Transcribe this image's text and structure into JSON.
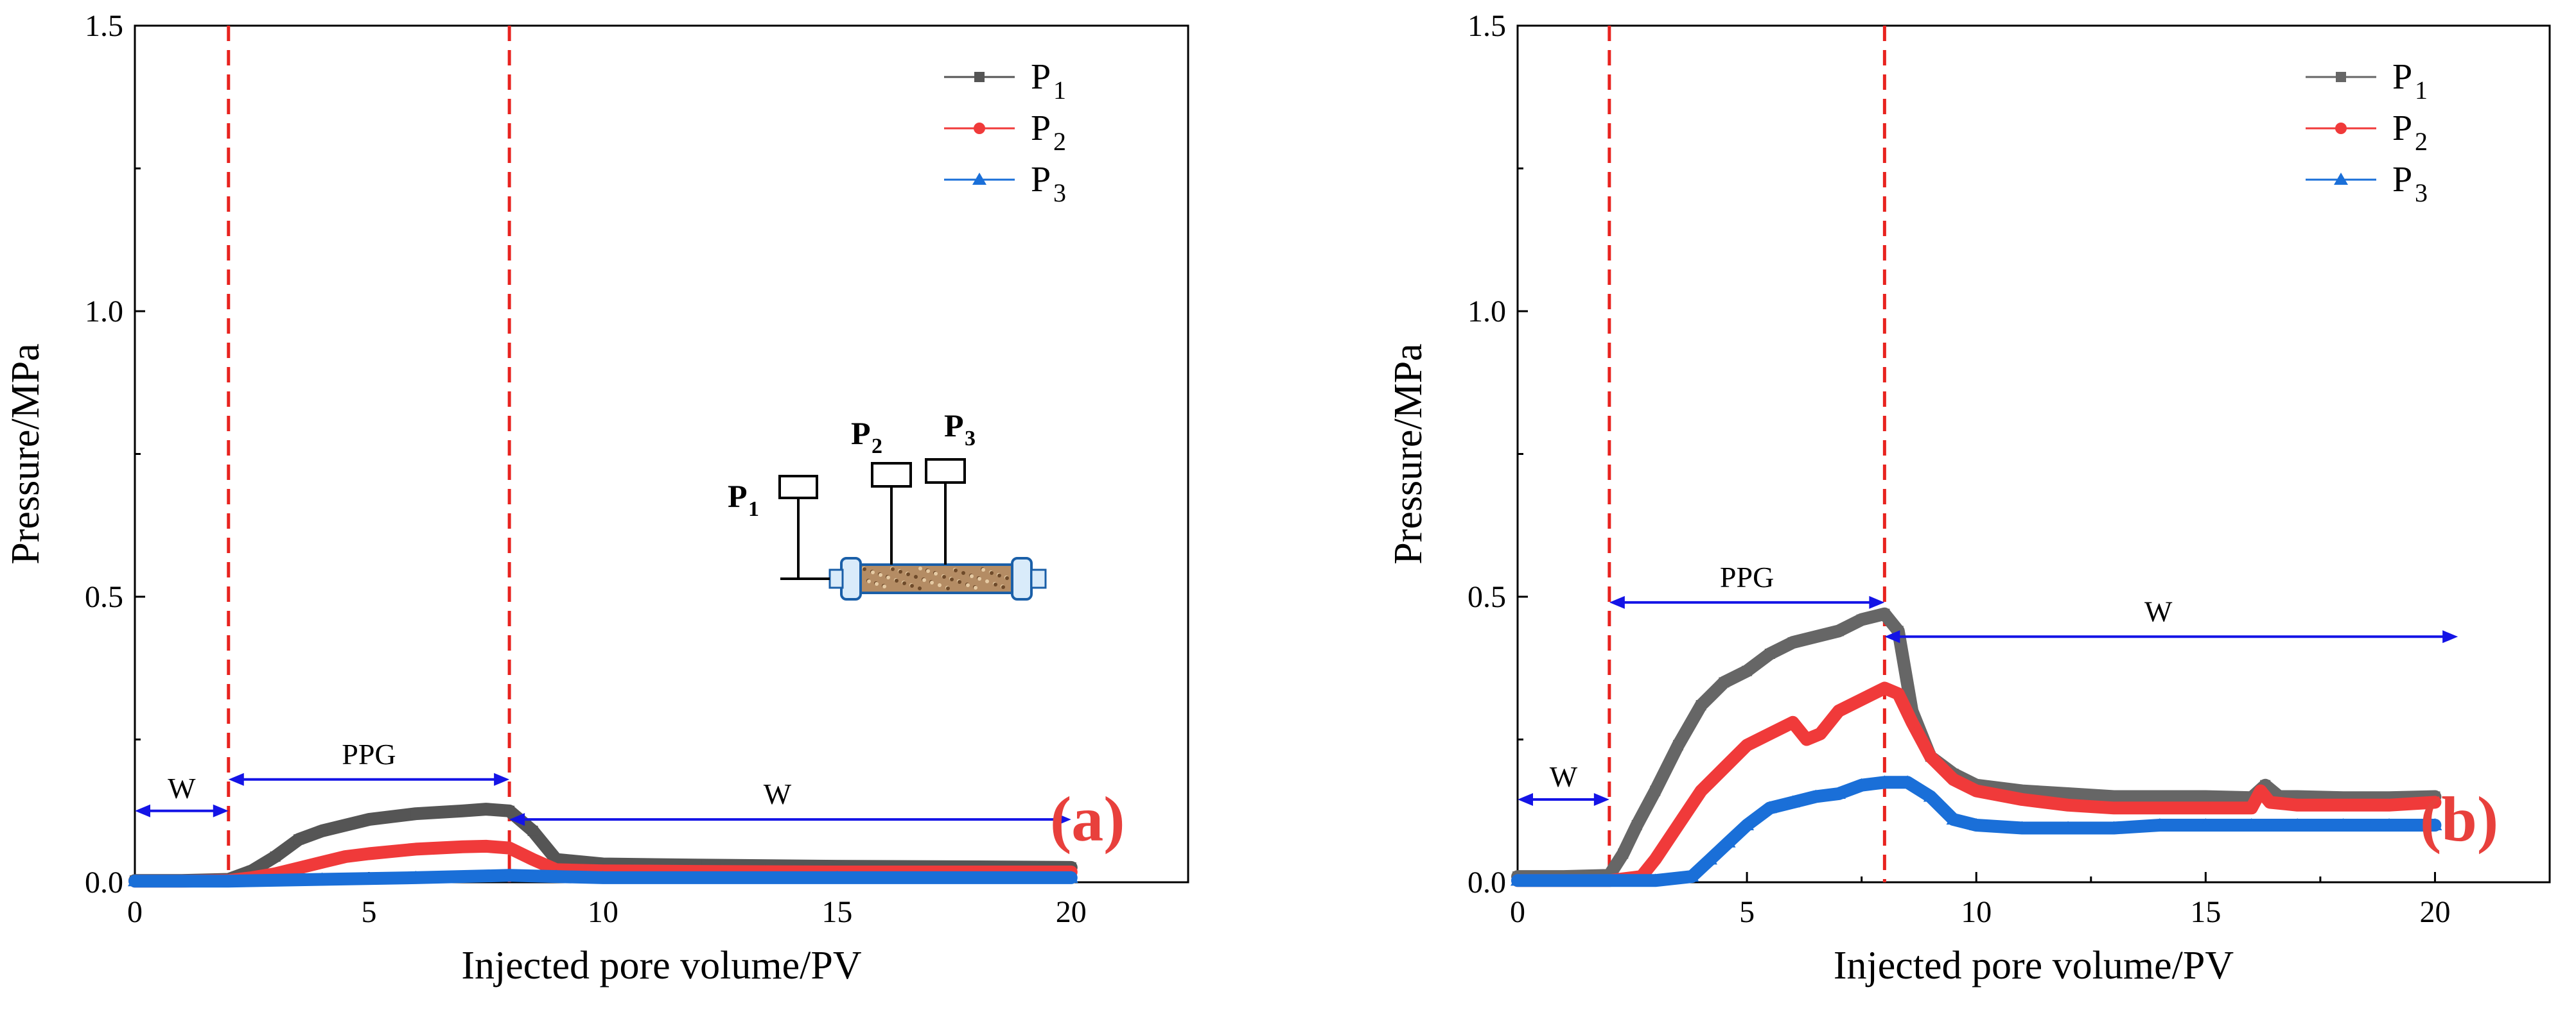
{
  "chart_data": [
    {
      "type": "line",
      "panel": "(a)",
      "xlabel": "Injected pore volume/PV",
      "ylabel": "Pressure/MPa",
      "xlim": [
        0,
        22.5
      ],
      "ylim": [
        0,
        1.5
      ],
      "xticks": [
        0,
        5,
        10,
        15,
        20
      ],
      "yticks": [
        0.0,
        0.5,
        1.0,
        1.5
      ],
      "xtick_labels": [
        "0",
        "5",
        "10",
        "15",
        "20"
      ],
      "ytick_labels": [
        "0.0",
        "0.5",
        "1.0",
        "1.5"
      ],
      "legend": [
        {
          "name": "P",
          "sub": "1"
        },
        {
          "name": "P",
          "sub": "2"
        },
        {
          "name": "P",
          "sub": "3"
        }
      ],
      "colors": [
        "#555555",
        "#f03a3a",
        "#1a6fd8"
      ],
      "vlines": [
        2,
        8
      ],
      "annotations": {
        "w_left": "W",
        "ppg": "PPG",
        "w_right": "W"
      },
      "arrow_y": {
        "w_left": 0.125,
        "ppg": 0.18,
        "w_right": 0.11
      },
      "arrow_x": {
        "w_left": [
          0,
          2
        ],
        "ppg": [
          2,
          8
        ],
        "w_right": [
          8,
          20
        ]
      },
      "series": [
        {
          "name": "P1",
          "x": [
            0,
            1,
            2,
            2.5,
            3,
            3.5,
            4,
            4.5,
            5,
            6,
            7,
            7.5,
            8,
            8.5,
            9,
            10,
            12,
            15,
            18,
            20
          ],
          "values": [
            0.003,
            0.003,
            0.005,
            0.02,
            0.045,
            0.075,
            0.09,
            0.1,
            0.11,
            0.12,
            0.125,
            0.128,
            0.125,
            0.09,
            0.04,
            0.032,
            0.03,
            0.028,
            0.027,
            0.026
          ]
        },
        {
          "name": "P2",
          "x": [
            0,
            1,
            2,
            2.5,
            3,
            3.5,
            4,
            4.5,
            5,
            6,
            7,
            7.5,
            8,
            8.5,
            9,
            10,
            12,
            15,
            18,
            20
          ],
          "values": [
            0.002,
            0.002,
            0.003,
            0.008,
            0.015,
            0.025,
            0.035,
            0.045,
            0.05,
            0.058,
            0.062,
            0.063,
            0.06,
            0.04,
            0.022,
            0.02,
            0.019,
            0.018,
            0.018,
            0.018
          ]
        },
        {
          "name": "P3",
          "x": [
            0,
            2,
            4,
            6,
            8,
            9,
            10,
            15,
            20
          ],
          "values": [
            0.002,
            0.002,
            0.005,
            0.008,
            0.012,
            0.01,
            0.008,
            0.008,
            0.008
          ]
        }
      ],
      "inset": {
        "labels": [
          {
            "name": "P",
            "sub": "1"
          },
          {
            "name": "P",
            "sub": "2"
          },
          {
            "name": "P",
            "sub": "3"
          }
        ]
      }
    },
    {
      "type": "line",
      "panel": "(b)",
      "xlabel": "Injected pore volume/PV",
      "ylabel": "Pressure/MPa",
      "xlim": [
        0,
        22.5
      ],
      "ylim": [
        0,
        1.5
      ],
      "xticks": [
        0,
        5,
        10,
        15,
        20
      ],
      "yticks": [
        0.0,
        0.5,
        1.0,
        1.5
      ],
      "xtick_labels": [
        "0",
        "5",
        "10",
        "15",
        "20"
      ],
      "ytick_labels": [
        "0.0",
        "0.5",
        "1.0",
        "1.5"
      ],
      "legend": [
        {
          "name": "P",
          "sub": "1"
        },
        {
          "name": "P",
          "sub": "2"
        },
        {
          "name": "P",
          "sub": "3"
        }
      ],
      "colors": [
        "#666666",
        "#f03a3a",
        "#1a6fd8"
      ],
      "vlines": [
        2,
        8
      ],
      "annotations": {
        "w_left": "W",
        "ppg": "PPG",
        "w_right": "W"
      },
      "arrow_y": {
        "w_left": 0.145,
        "ppg": 0.49,
        "w_right": 0.43
      },
      "arrow_x": {
        "w_left": [
          0,
          2
        ],
        "ppg": [
          2,
          8
        ],
        "w_right": [
          8,
          20.5
        ]
      },
      "series": [
        {
          "name": "P1",
          "x": [
            0,
            1,
            2,
            2.3,
            2.6,
            3,
            3.5,
            4,
            4.5,
            5,
            5.5,
            6,
            6.5,
            7,
            7.5,
            8,
            8.3,
            8.6,
            9,
            9.5,
            10,
            11,
            12,
            13,
            14,
            15,
            16,
            16.3,
            16.6,
            17,
            18,
            19,
            20
          ],
          "values": [
            0.01,
            0.01,
            0.012,
            0.05,
            0.1,
            0.16,
            0.24,
            0.31,
            0.35,
            0.37,
            0.4,
            0.42,
            0.43,
            0.44,
            0.46,
            0.47,
            0.44,
            0.3,
            0.22,
            0.19,
            0.17,
            0.16,
            0.155,
            0.15,
            0.15,
            0.15,
            0.148,
            0.17,
            0.15,
            0.15,
            0.148,
            0.148,
            0.15
          ]
        },
        {
          "name": "P2",
          "x": [
            0,
            2,
            2.7,
            3,
            3.5,
            4,
            4.5,
            5,
            5.5,
            6,
            6.3,
            6.6,
            7,
            7.5,
            8,
            8.3,
            8.6,
            9,
            9.5,
            10,
            11,
            12,
            13,
            14,
            15,
            16,
            16.2,
            16.4,
            17,
            18,
            19,
            20
          ],
          "values": [
            0.003,
            0.003,
            0.01,
            0.04,
            0.1,
            0.16,
            0.2,
            0.24,
            0.26,
            0.28,
            0.25,
            0.26,
            0.3,
            0.32,
            0.34,
            0.33,
            0.28,
            0.22,
            0.18,
            0.16,
            0.145,
            0.135,
            0.13,
            0.13,
            0.13,
            0.13,
            0.16,
            0.14,
            0.135,
            0.135,
            0.135,
            0.14
          ]
        },
        {
          "name": "P3",
          "x": [
            0,
            3,
            3.8,
            4.2,
            4.6,
            5,
            5.5,
            6,
            6.5,
            7,
            7.5,
            8,
            8.5,
            9,
            9.5,
            10,
            11,
            12,
            13,
            14,
            15,
            16,
            17,
            18,
            19,
            20
          ],
          "values": [
            0.003,
            0.003,
            0.01,
            0.04,
            0.07,
            0.1,
            0.13,
            0.14,
            0.15,
            0.155,
            0.17,
            0.175,
            0.175,
            0.15,
            0.11,
            0.1,
            0.095,
            0.095,
            0.095,
            0.1,
            0.1,
            0.1,
            0.1,
            0.1,
            0.1,
            0.1
          ]
        }
      ]
    }
  ]
}
